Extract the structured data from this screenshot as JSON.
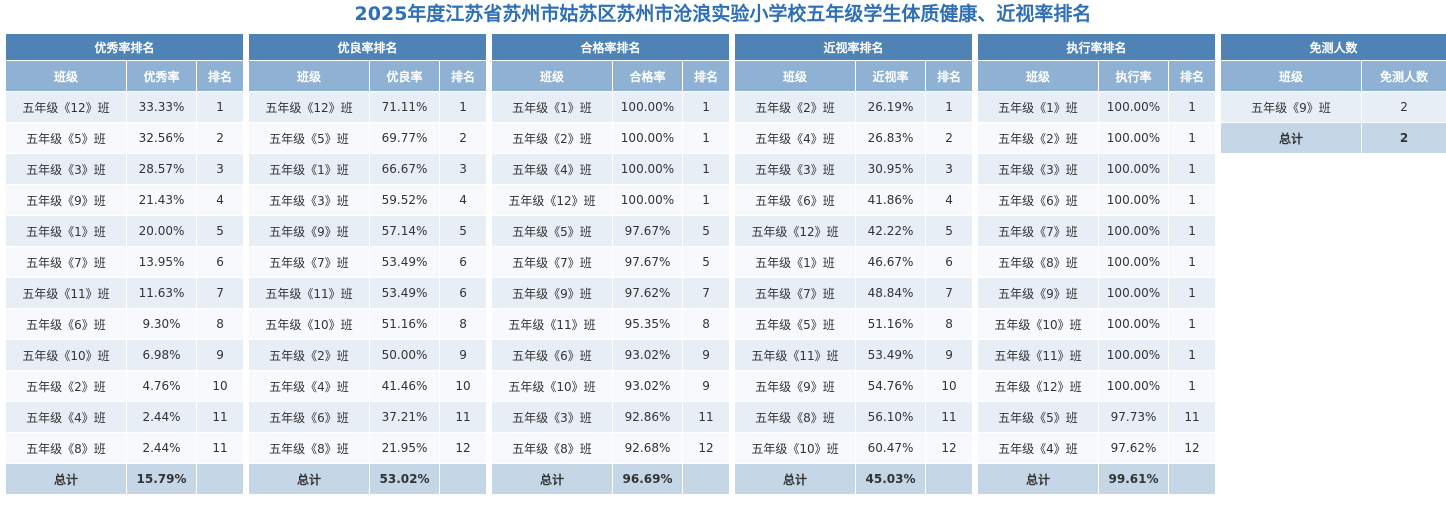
{
  "title": "2025年度江苏省苏州市姑苏区苏州市沧浪实验小学校五年级学生体质健康、近视率排名",
  "tables": [
    {
      "heading": "优秀率排名",
      "col_class": "班级",
      "col_rate": "优秀率",
      "col_rank": "排名",
      "rows": [
        [
          "五年级《12》班",
          "33.33%",
          "1"
        ],
        [
          "五年级《5》班",
          "32.56%",
          "2"
        ],
        [
          "五年级《3》班",
          "28.57%",
          "3"
        ],
        [
          "五年级《9》班",
          "21.43%",
          "4"
        ],
        [
          "五年级《1》班",
          "20.00%",
          "5"
        ],
        [
          "五年级《7》班",
          "13.95%",
          "6"
        ],
        [
          "五年级《11》班",
          "11.63%",
          "7"
        ],
        [
          "五年级《6》班",
          "9.30%",
          "8"
        ],
        [
          "五年级《10》班",
          "6.98%",
          "9"
        ],
        [
          "五年级《2》班",
          "4.76%",
          "10"
        ],
        [
          "五年级《4》班",
          "2.44%",
          "11"
        ],
        [
          "五年级《8》班",
          "2.44%",
          "11"
        ]
      ],
      "total_label": "总计",
      "total_value": "15.79%"
    },
    {
      "heading": "优良率排名",
      "col_class": "班级",
      "col_rate": "优良率",
      "col_rank": "排名",
      "rows": [
        [
          "五年级《12》班",
          "71.11%",
          "1"
        ],
        [
          "五年级《5》班",
          "69.77%",
          "2"
        ],
        [
          "五年级《1》班",
          "66.67%",
          "3"
        ],
        [
          "五年级《3》班",
          "59.52%",
          "4"
        ],
        [
          "五年级《9》班",
          "57.14%",
          "5"
        ],
        [
          "五年级《7》班",
          "53.49%",
          "6"
        ],
        [
          "五年级《11》班",
          "53.49%",
          "6"
        ],
        [
          "五年级《10》班",
          "51.16%",
          "8"
        ],
        [
          "五年级《2》班",
          "50.00%",
          "9"
        ],
        [
          "五年级《4》班",
          "41.46%",
          "10"
        ],
        [
          "五年级《6》班",
          "37.21%",
          "11"
        ],
        [
          "五年级《8》班",
          "21.95%",
          "12"
        ]
      ],
      "total_label": "总计",
      "total_value": "53.02%"
    },
    {
      "heading": "合格率排名",
      "col_class": "班级",
      "col_rate": "合格率",
      "col_rank": "排名",
      "rows": [
        [
          "五年级《1》班",
          "100.00%",
          "1"
        ],
        [
          "五年级《2》班",
          "100.00%",
          "1"
        ],
        [
          "五年级《4》班",
          "100.00%",
          "1"
        ],
        [
          "五年级《12》班",
          "100.00%",
          "1"
        ],
        [
          "五年级《5》班",
          "97.67%",
          "5"
        ],
        [
          "五年级《7》班",
          "97.67%",
          "5"
        ],
        [
          "五年级《9》班",
          "97.62%",
          "7"
        ],
        [
          "五年级《11》班",
          "95.35%",
          "8"
        ],
        [
          "五年级《6》班",
          "93.02%",
          "9"
        ],
        [
          "五年级《10》班",
          "93.02%",
          "9"
        ],
        [
          "五年级《3》班",
          "92.86%",
          "11"
        ],
        [
          "五年级《8》班",
          "92.68%",
          "12"
        ]
      ],
      "total_label": "总计",
      "total_value": "96.69%"
    },
    {
      "heading": "近视率排名",
      "col_class": "班级",
      "col_rate": "近视率",
      "col_rank": "排名",
      "rows": [
        [
          "五年级《2》班",
          "26.19%",
          "1"
        ],
        [
          "五年级《4》班",
          "26.83%",
          "2"
        ],
        [
          "五年级《3》班",
          "30.95%",
          "3"
        ],
        [
          "五年级《6》班",
          "41.86%",
          "4"
        ],
        [
          "五年级《12》班",
          "42.22%",
          "5"
        ],
        [
          "五年级《1》班",
          "46.67%",
          "6"
        ],
        [
          "五年级《7》班",
          "48.84%",
          "7"
        ],
        [
          "五年级《5》班",
          "51.16%",
          "8"
        ],
        [
          "五年级《11》班",
          "53.49%",
          "9"
        ],
        [
          "五年级《9》班",
          "54.76%",
          "10"
        ],
        [
          "五年级《8》班",
          "56.10%",
          "11"
        ],
        [
          "五年级《10》班",
          "60.47%",
          "12"
        ]
      ],
      "total_label": "总计",
      "total_value": "45.03%"
    },
    {
      "heading": "执行率排名",
      "col_class": "班级",
      "col_rate": "执行率",
      "col_rank": "排名",
      "rows": [
        [
          "五年级《1》班",
          "100.00%",
          "1"
        ],
        [
          "五年级《2》班",
          "100.00%",
          "1"
        ],
        [
          "五年级《3》班",
          "100.00%",
          "1"
        ],
        [
          "五年级《6》班",
          "100.00%",
          "1"
        ],
        [
          "五年级《7》班",
          "100.00%",
          "1"
        ],
        [
          "五年级《8》班",
          "100.00%",
          "1"
        ],
        [
          "五年级《9》班",
          "100.00%",
          "1"
        ],
        [
          "五年级《10》班",
          "100.00%",
          "1"
        ],
        [
          "五年级《11》班",
          "100.00%",
          "1"
        ],
        [
          "五年级《12》班",
          "100.00%",
          "1"
        ],
        [
          "五年级《5》班",
          "97.73%",
          "11"
        ],
        [
          "五年级《4》班",
          "97.62%",
          "12"
        ]
      ],
      "total_label": "总计",
      "total_value": "99.61%"
    }
  ],
  "exempt_table": {
    "heading": "免测人数",
    "col_class": "班级",
    "col_count": "免测人数",
    "rows": [
      [
        "五年级《9》班",
        "2"
      ]
    ],
    "total_label": "总计",
    "total_value": "2"
  }
}
